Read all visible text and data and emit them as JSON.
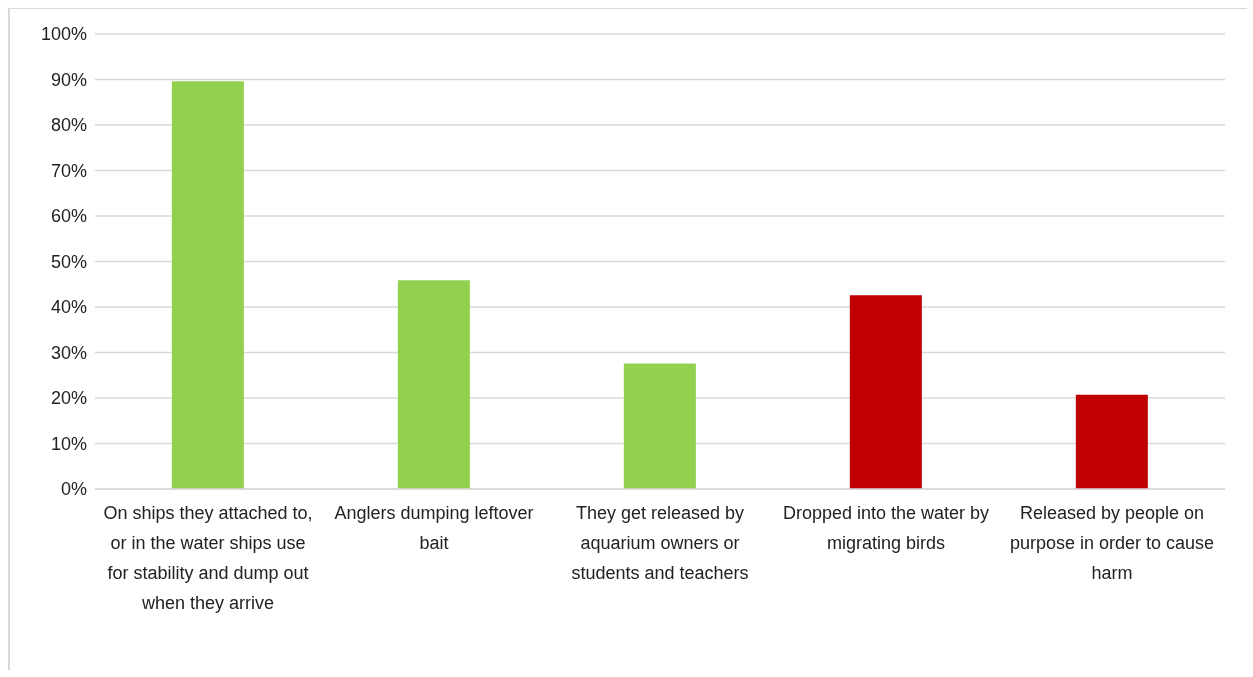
{
  "chart_data": {
    "type": "bar",
    "categories": [
      "On ships they attached to, or in the water ships use for stability and dump out when they arrive",
      "Anglers dumping leftover bait",
      "They get released by aquarium owners or students and teachers",
      "Dropped into the water by migrating birds",
      "Released by people on purpose in order to cause harm"
    ],
    "values": [
      89.6,
      45.9,
      27.6,
      42.6,
      20.7
    ],
    "colors": [
      "#92d050",
      "#92d050",
      "#92d050",
      "#c00000",
      "#c00000"
    ],
    "ylim": [
      0,
      100
    ],
    "yticks": [
      {
        "value": 0,
        "label": "0%"
      },
      {
        "value": 10,
        "label": "10%"
      },
      {
        "value": 20,
        "label": "20%"
      },
      {
        "value": 30,
        "label": "30%"
      },
      {
        "value": 40,
        "label": "40%"
      },
      {
        "value": 50,
        "label": "50%"
      },
      {
        "value": 60,
        "label": "60%"
      },
      {
        "value": 70,
        "label": "70%"
      },
      {
        "value": 80,
        "label": "80%"
      },
      {
        "value": 90,
        "label": "90%"
      },
      {
        "value": 100,
        "label": "100%"
      }
    ],
    "grid": "y",
    "legend": false
  }
}
